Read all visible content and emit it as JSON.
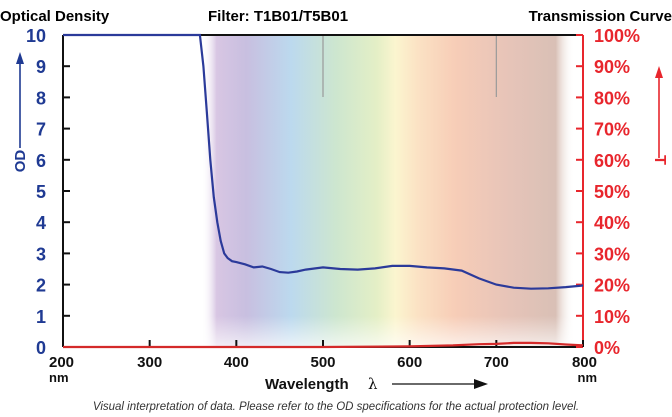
{
  "header": {
    "left_title": "Optical Density",
    "center_title": "Filter: T1B01/T5B01",
    "right_title": "Transmission Curve"
  },
  "footnote": "Visual interpretation of data. Please refer to the OD specifications for the actual protection level.",
  "colors": {
    "od_axis": "#1f3a93",
    "od_curve": "#2b3a9a",
    "t_axis": "#e8262d",
    "t_curve": "#d42a2a",
    "grid": "#9a9a9a"
  },
  "chart_data": {
    "type": "line",
    "xlabel": "Wavelength",
    "xlabel_symbol": "λ",
    "ylabel_left": "OD",
    "ylabel_right": "T",
    "xlim": [
      200,
      800
    ],
    "ylim_left": [
      0,
      10
    ],
    "ylim_right": [
      0,
      100
    ],
    "x_ticks": [
      {
        "value": 200,
        "label": "200",
        "unit": "nm"
      },
      {
        "value": 300,
        "label": "300",
        "unit": ""
      },
      {
        "value": 400,
        "label": "400",
        "unit": ""
      },
      {
        "value": 500,
        "label": "500",
        "unit": ""
      },
      {
        "value": 600,
        "label": "600",
        "unit": ""
      },
      {
        "value": 700,
        "label": "700",
        "unit": ""
      },
      {
        "value": 800,
        "label": "800",
        "unit": "nm"
      }
    ],
    "y_left_ticks": [
      "0",
      "1",
      "2",
      "3",
      "4",
      "5",
      "6",
      "7",
      "8",
      "9",
      "10"
    ],
    "y_right_ticks": [
      "0%",
      "10%",
      "20%",
      "30%",
      "40%",
      "50%",
      "60%",
      "70%",
      "80%",
      "90%",
      "100%"
    ],
    "grid": "vertical at 500, 700",
    "series": [
      {
        "name": "OD",
        "axis": "left",
        "x": [
          200,
          358,
          362,
          366,
          370,
          374,
          378,
          382,
          386,
          390,
          395,
          400,
          410,
          420,
          430,
          440,
          450,
          460,
          470,
          480,
          500,
          520,
          540,
          560,
          580,
          600,
          620,
          640,
          660,
          680,
          700,
          720,
          740,
          760,
          780,
          800
        ],
        "y": [
          10,
          10,
          9.0,
          7.5,
          6.0,
          4.8,
          4.0,
          3.4,
          3.0,
          2.85,
          2.75,
          2.72,
          2.65,
          2.55,
          2.58,
          2.5,
          2.4,
          2.38,
          2.42,
          2.48,
          2.55,
          2.5,
          2.48,
          2.52,
          2.6,
          2.6,
          2.55,
          2.52,
          2.45,
          2.2,
          2.0,
          1.9,
          1.87,
          1.88,
          1.92,
          1.97
        ]
      },
      {
        "name": "T",
        "axis": "right",
        "x": [
          200,
          500,
          600,
          650,
          680,
          700,
          720,
          740,
          760,
          780,
          800
        ],
        "y": [
          0,
          0,
          0.2,
          0.5,
          0.9,
          1.0,
          1.3,
          1.3,
          1.2,
          0.8,
          0.5
        ]
      }
    ]
  }
}
